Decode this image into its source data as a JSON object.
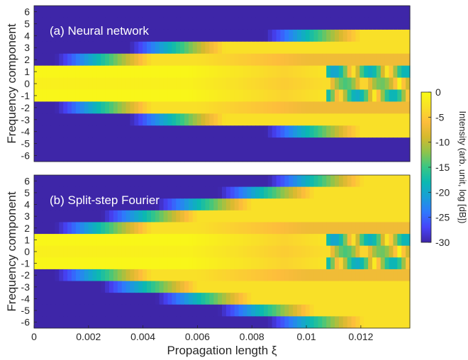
{
  "chart_data": [
    {
      "type": "heatmap",
      "title": "(a) Neural network",
      "ylabel": "Frequency component",
      "xlabel": "",
      "xlim": [
        0,
        0.0138
      ],
      "y_categories": [
        6,
        5,
        4,
        3,
        2,
        1,
        0,
        -1,
        -2,
        -3,
        -4,
        -5,
        -6
      ],
      "y_tick_labels": [
        "6",
        "5",
        "4",
        "3",
        "2",
        "1",
        "0",
        "-1",
        "-2",
        "-3",
        "-4",
        "-5",
        "-6"
      ],
      "x_ticks": [],
      "rows": [
        {
          "component": 6,
          "onset": null
        },
        {
          "component": 5,
          "onset": null
        },
        {
          "component": 4,
          "onset": 0.0085
        },
        {
          "component": 3,
          "onset": 0.0035
        },
        {
          "component": 2,
          "onset": 0.0008
        },
        {
          "component": 1,
          "onset": 0
        },
        {
          "component": 0,
          "onset": 0
        },
        {
          "component": -1,
          "onset": 0
        },
        {
          "component": -2,
          "onset": 0.0008
        },
        {
          "component": -3,
          "onset": 0.0035
        },
        {
          "component": -4,
          "onset": 0.0085
        },
        {
          "component": -5,
          "onset": null
        },
        {
          "component": -6,
          "onset": null
        }
      ]
    },
    {
      "type": "heatmap",
      "title": "(b) Split-step Fourier",
      "ylabel": "Frequency component",
      "xlabel": "Propagation length ξ",
      "xlim": [
        0,
        0.0138
      ],
      "y_categories": [
        6,
        5,
        4,
        3,
        2,
        1,
        0,
        -1,
        -2,
        -3,
        -4,
        -5,
        -6
      ],
      "y_tick_labels": [
        "6",
        "5",
        "4",
        "3",
        "2",
        "1",
        "0",
        "-1",
        "-2",
        "-3",
        "-4",
        "-5",
        "-6"
      ],
      "x_ticks": [
        0,
        0.002,
        0.004,
        0.006,
        0.008,
        0.01,
        0.012
      ],
      "x_tick_labels": [
        "0",
        "0.002",
        "0.004",
        "0.006",
        "0.008",
        "0.01",
        "0.012"
      ],
      "rows": [
        {
          "component": 6,
          "onset": 0.0086
        },
        {
          "component": 5,
          "onset": 0.0068
        },
        {
          "component": 4,
          "onset": 0.0045
        },
        {
          "component": 3,
          "onset": 0.0025
        },
        {
          "component": 2,
          "onset": 0.0008
        },
        {
          "component": 1,
          "onset": 0
        },
        {
          "component": 0,
          "onset": 0
        },
        {
          "component": -1,
          "onset": 0
        },
        {
          "component": -2,
          "onset": 0.0008
        },
        {
          "component": -3,
          "onset": 0.0025
        },
        {
          "component": -4,
          "onset": 0.0045
        },
        {
          "component": -5,
          "onset": 0.0068
        },
        {
          "component": -6,
          "onset": 0.0086
        }
      ]
    }
  ],
  "colorbar": {
    "label": "Intensity (arb. unit, log [dB])",
    "range": [
      -30,
      0
    ],
    "ticks": [
      0,
      -5,
      -10,
      -15,
      -20,
      -25,
      -30
    ],
    "tick_labels": [
      "0",
      "-5",
      "-10",
      "-15",
      "-20",
      "-25",
      "-30"
    ],
    "colormap": [
      "#3e26a8",
      "#4743f8",
      "#2f78fd",
      "#199ed8",
      "#0bb8b2",
      "#37c785",
      "#8ec44c",
      "#d5b92e",
      "#fdbd3c",
      "#f9e028",
      "#f9fb15"
    ]
  }
}
